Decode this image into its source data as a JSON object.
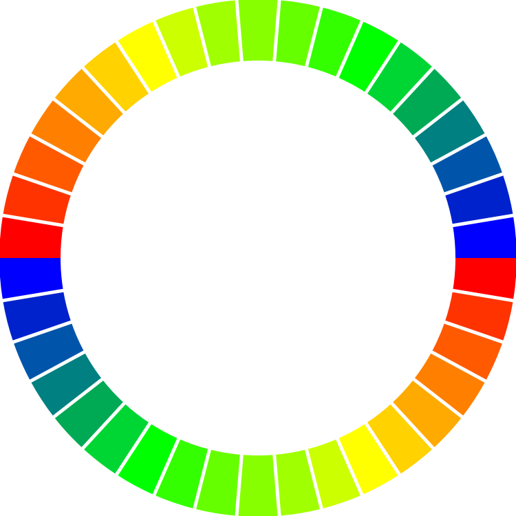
{
  "wheel": {
    "colors": [
      "#ff0000",
      "#ff3300",
      "#ff5a00",
      "#ff8000",
      "#ffaa00",
      "#ffd200",
      "#ffff00",
      "#ccff00",
      "#a0ff00",
      "#88ff00",
      "#66ff00",
      "#33ff00",
      "#00ff00",
      "#00d633",
      "#00aa55",
      "#008080",
      "#0055aa",
      "#0022cc",
      "#0000ff"
    ]
  }
}
